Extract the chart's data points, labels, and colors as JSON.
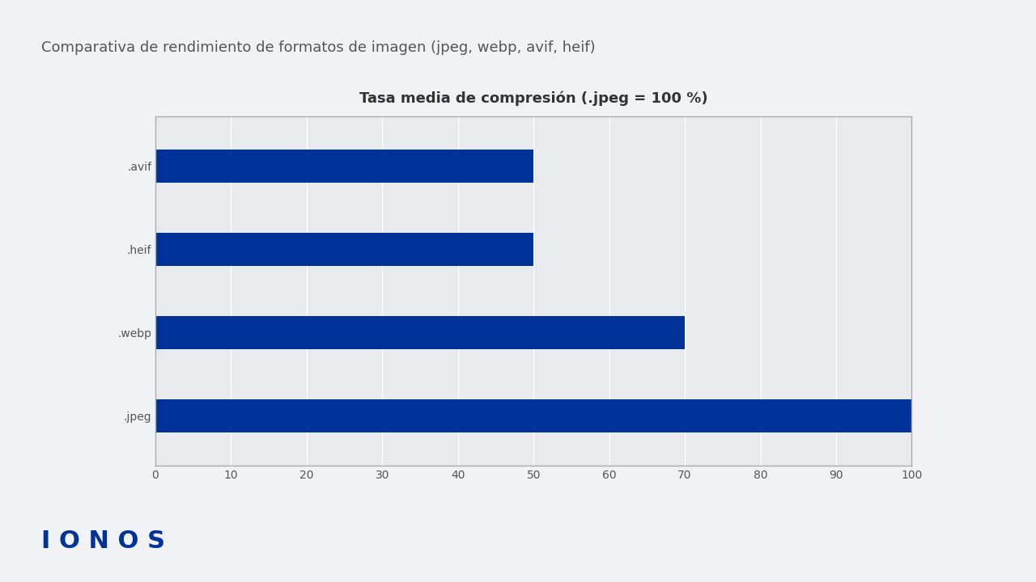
{
  "title": "Comparativa de rendimiento de formatos de imagen (jpeg, webp, avif, heif)",
  "chart_title": "Tasa media de compresión (.jpeg = 100 %)",
  "categories": [
    ".jpeg",
    ".webp",
    ".heif",
    ".avif"
  ],
  "values": [
    100,
    70,
    50,
    50
  ],
  "bar_color": "#003399",
  "background_color": "#f0f2f5",
  "chart_bg_color": "#e8eaed",
  "xlim": [
    0,
    100
  ],
  "xticks": [
    0,
    10,
    20,
    30,
    40,
    50,
    60,
    70,
    80,
    90,
    100
  ],
  "title_fontsize": 13,
  "chart_title_fontsize": 13,
  "tick_fontsize": 10,
  "ionos_text": "I O N O S",
  "ionos_color": "#003399",
  "ionos_fontsize": 22,
  "border_color": "#aaaaaa",
  "title_color": "#555555"
}
